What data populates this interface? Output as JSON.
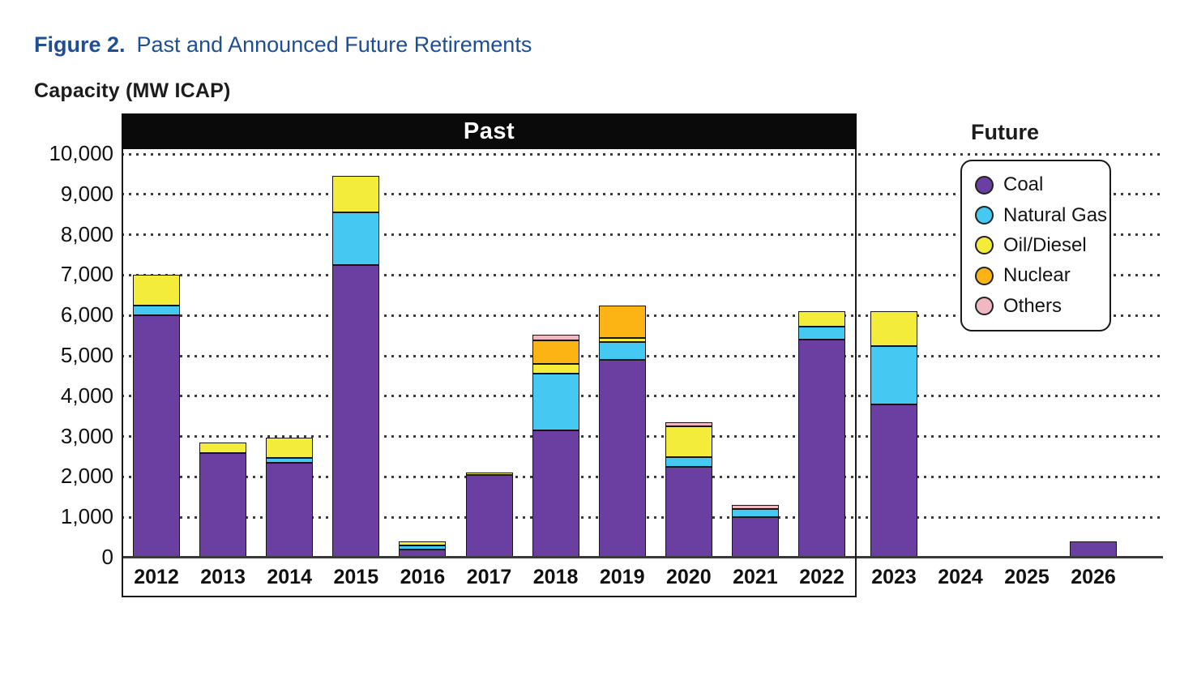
{
  "figure": {
    "label": "Figure 2.",
    "title": "Past and Announced Future Retirements"
  },
  "y_axis_title": "Capacity (MW ICAP)",
  "sections": {
    "past_label": "Past",
    "future_label": "Future"
  },
  "y_ticks": [
    "10,000",
    "9,000",
    "8,000",
    "7,000",
    "6,000",
    "5,000",
    "4,000",
    "3,000",
    "2,000",
    "1,000",
    "0"
  ],
  "colors": {
    "coal": "#6b3fa1",
    "natural_gas": "#45c8f1",
    "oil_diesel": "#f3ec3b",
    "nuclear": "#fcb415",
    "others": "#f0b8c0",
    "title_blue": "#1e4e96",
    "banner_black": "#0a0a0a"
  },
  "chart_data": {
    "type": "bar",
    "stacked": true,
    "title": "Past and Announced Future Retirements",
    "ylabel": "Capacity (MW ICAP)",
    "ylim": [
      0,
      10000
    ],
    "y_tick_step": 1000,
    "grid": "dotted horizontal",
    "legend_position": "upper right",
    "categories": [
      "2012",
      "2013",
      "2014",
      "2015",
      "2016",
      "2017",
      "2018",
      "2019",
      "2020",
      "2021",
      "2022",
      "2023",
      "2024",
      "2025",
      "2026"
    ],
    "past_categories": [
      "2012",
      "2013",
      "2014",
      "2015",
      "2016",
      "2017",
      "2018",
      "2019",
      "2020",
      "2021",
      "2022"
    ],
    "future_categories": [
      "2023",
      "2024",
      "2025",
      "2026"
    ],
    "series": [
      {
        "name": "Coal",
        "color": "#6b3fa1",
        "values": [
          6000,
          2600,
          2350,
          7250,
          200,
          2050,
          3150,
          4900,
          2250,
          1000,
          5400,
          3800,
          0,
          0,
          400
        ]
      },
      {
        "name": "Natural Gas",
        "color": "#45c8f1",
        "values": [
          250,
          0,
          125,
          1300,
          100,
          0,
          1400,
          450,
          250,
          200,
          325,
          1450,
          0,
          0,
          0
        ]
      },
      {
        "name": "Oil/Diesel",
        "color": "#f3ec3b",
        "values": [
          750,
          250,
          500,
          900,
          100,
          50,
          250,
          100,
          750,
          0,
          375,
          850,
          0,
          0,
          0
        ]
      },
      {
        "name": "Nuclear",
        "color": "#fcb415",
        "values": [
          0,
          0,
          0,
          0,
          0,
          0,
          575,
          800,
          0,
          0,
          0,
          0,
          0,
          0,
          0
        ]
      },
      {
        "name": "Others",
        "color": "#f0b8c0",
        "values": [
          0,
          0,
          0,
          0,
          0,
          0,
          150,
          0,
          100,
          100,
          0,
          0,
          0,
          0,
          0
        ]
      }
    ]
  }
}
